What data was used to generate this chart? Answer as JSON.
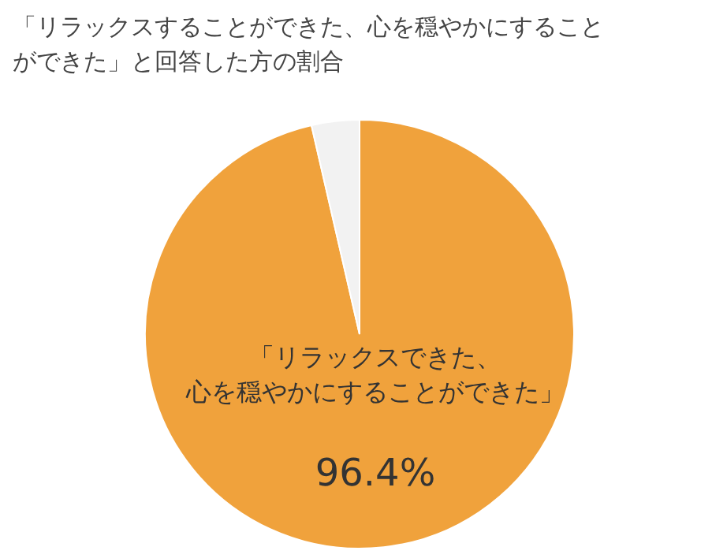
{
  "chart_data": {
    "type": "pie",
    "title": "「リラックスすることができた、心を穏やかにすることができた」と回答した方の割合",
    "categories": [
      "「リラックスできた、心を穏やかにすることができた」",
      null
    ],
    "values": [
      96.4,
      3.6
    ],
    "colors": [
      "#f0a23c",
      "#f2f2f2"
    ],
    "value_labels": [
      "96.4%",
      null
    ]
  }
}
